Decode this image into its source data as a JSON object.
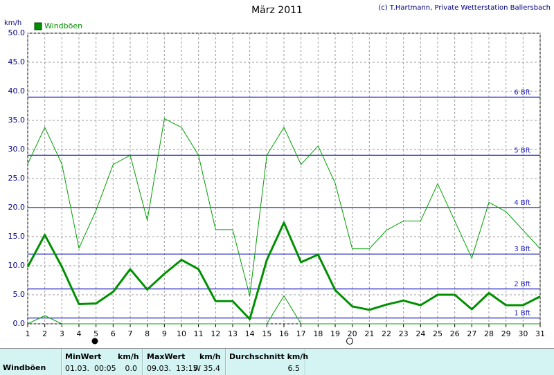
{
  "chart_data": {
    "type": "line",
    "title": "März 2011",
    "credit": "(c) T.Hartmann, Private Wetterstation Ballersbach",
    "y_unit": "km/h",
    "x": [
      1,
      2,
      3,
      4,
      5,
      6,
      7,
      8,
      9,
      10,
      11,
      12,
      13,
      14,
      15,
      16,
      17,
      18,
      19,
      20,
      21,
      22,
      23,
      24,
      25,
      26,
      27,
      28,
      29,
      30,
      31
    ],
    "xlim": [
      1,
      31
    ],
    "xticks": [
      1,
      2,
      3,
      4,
      5,
      6,
      7,
      8,
      9,
      10,
      11,
      12,
      13,
      14,
      15,
      16,
      17,
      18,
      19,
      20,
      21,
      22,
      23,
      24,
      25,
      26,
      27,
      28,
      29,
      30,
      31
    ],
    "ylim": [
      0,
      50
    ],
    "yticks": [
      {
        "value": 0,
        "label": "0.0"
      },
      {
        "value": 5,
        "label": "5.0"
      },
      {
        "value": 10,
        "label": "10.0"
      },
      {
        "value": 15,
        "label": "15.0"
      },
      {
        "value": 20,
        "label": "20.0"
      },
      {
        "value": 25,
        "label": "25.0"
      },
      {
        "value": 30,
        "label": "30.0"
      },
      {
        "value": 35,
        "label": "35.0"
      },
      {
        "value": 40,
        "label": "40.0"
      },
      {
        "value": 45,
        "label": "45.0"
      },
      {
        "value": 50,
        "label": "50.0"
      }
    ],
    "grid": true,
    "legend": "top-left",
    "series": [
      {
        "color": "#00a000",
        "width": 1,
        "values": [
          27.5,
          33.8,
          27.5,
          13,
          19.5,
          27.4,
          29,
          17.8,
          35.3,
          33.8,
          29,
          16.2,
          16.2,
          4.8,
          29,
          33.8,
          27.4,
          30.6,
          24.2,
          12.9,
          12.9,
          16.1,
          17.7,
          17.7,
          24.1,
          17.7,
          11.3,
          20.9,
          19.3,
          16.1,
          12.9
        ]
      },
      {
        "name": "Windböen",
        "color": "#009000",
        "width": 3,
        "values": [
          9.8,
          15.3,
          9.8,
          3.4,
          3.5,
          5.5,
          9.4,
          5.9,
          8.6,
          11,
          9.4,
          3.9,
          3.9,
          0.8,
          11,
          17.4,
          10.6,
          11.9,
          5.8,
          3,
          2.4,
          3.3,
          4,
          3.2,
          5,
          5,
          2.5,
          5.3,
          3.2,
          3.2,
          4.7
        ]
      },
      {
        "color": "#00a000",
        "width": 1,
        "values": [
          0,
          1.4,
          0,
          0,
          0,
          0,
          0,
          0,
          0,
          0,
          0,
          0,
          0,
          0,
          0,
          4.8,
          0,
          0,
          0,
          0,
          0,
          0,
          0,
          0,
          0,
          0,
          0,
          0,
          0,
          0,
          0
        ]
      }
    ],
    "reference_lines": [
      {
        "value": 1,
        "label": "1 Bft"
      },
      {
        "value": 6,
        "label": "2 Bft"
      },
      {
        "value": 12,
        "label": "3 Bft"
      },
      {
        "value": 20,
        "label": "4 Bft"
      },
      {
        "value": 29,
        "label": "5 Bft"
      },
      {
        "value": 39,
        "label": "6 Bft"
      }
    ],
    "reference_color": "#2020c0"
  },
  "table": {
    "row_label": "Windböen",
    "columns": [
      {
        "header": "MinWert",
        "unit": "km/h",
        "time": "01.03.  00:05",
        "value": "0.0"
      },
      {
        "header": "MaxWert",
        "unit": "km/h",
        "time": "09.03.  13:15",
        "value": "W 35.4"
      },
      {
        "header": "Durchschnitt km/h",
        "value": "6.5"
      }
    ]
  }
}
